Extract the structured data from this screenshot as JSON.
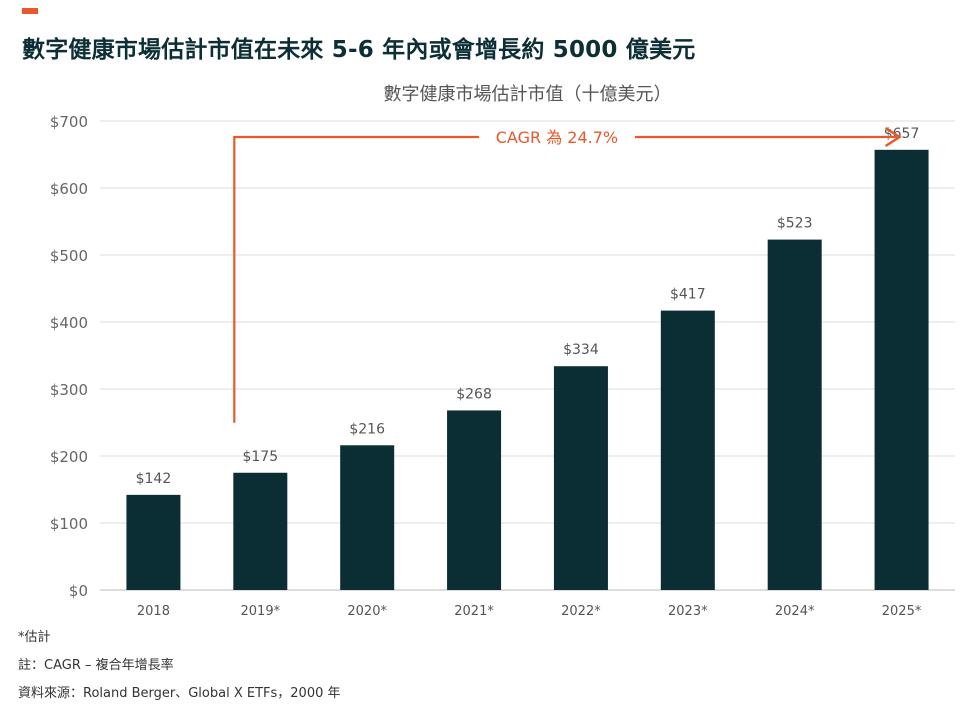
{
  "header": {
    "headline": "數字健康市場估計市值在未來 5-6 年內或會增長約 5000 億美元"
  },
  "colors": {
    "accent": "#e8582b",
    "bar": "#0b2e35",
    "grid": "#dddddd",
    "title": "#0c2f36"
  },
  "chart_data": {
    "type": "bar",
    "title": "數字健康市場估計市值（十億美元）",
    "xlabel": "",
    "ylabel": "",
    "categories": [
      "2018",
      "2019*",
      "2020*",
      "2021*",
      "2022*",
      "2023*",
      "2024*",
      "2025*"
    ],
    "values": [
      142,
      175,
      216,
      268,
      334,
      417,
      523,
      657
    ],
    "value_labels": [
      "$142",
      "$175",
      "$216",
      "$268",
      "$334",
      "$417",
      "$523",
      "$657"
    ],
    "ylim": [
      0,
      700
    ],
    "yticks": [
      0,
      100,
      200,
      300,
      400,
      500,
      600,
      700
    ],
    "ytick_labels": [
      "$0",
      "$100",
      "$200",
      "$300",
      "$400",
      "$500",
      "$600",
      "$700"
    ],
    "grid": true,
    "annotation": {
      "text": "CAGR 為 24.7%",
      "from_category": "2019*",
      "to_category": "2025*"
    }
  },
  "footnotes": {
    "estimate": "*估計",
    "note": "註：CAGR – 複合年增長率",
    "source": "資料來源：Roland Berger、Global X ETFs，2000 年"
  }
}
